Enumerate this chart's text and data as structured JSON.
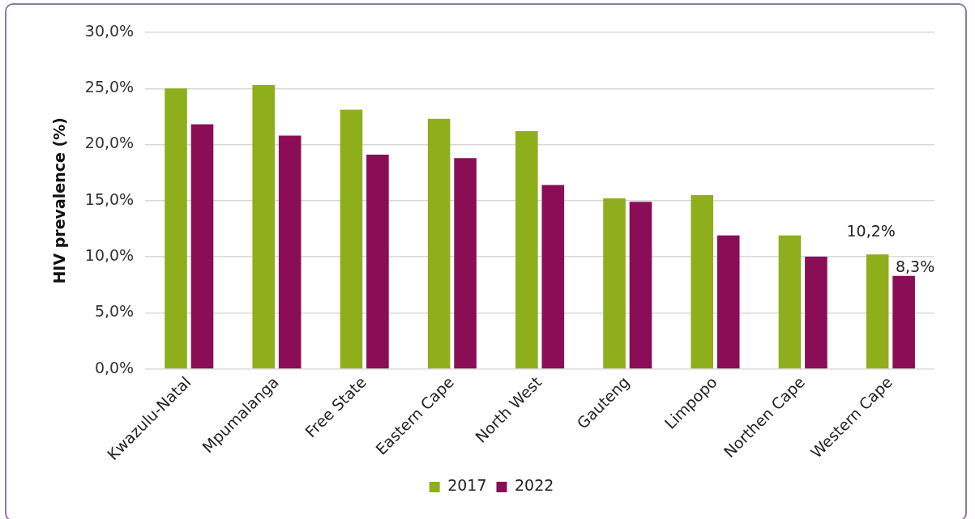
{
  "chart_data": {
    "type": "bar",
    "ylabel": "HIV prevalence (%)",
    "categories": [
      "Kwazulu-Natal",
      "Mpumalanga",
      "Free State",
      "Eastern Cape",
      "North West",
      "Gauteng",
      "Limpopo",
      "Northen Cape",
      "Western Cape"
    ],
    "series": [
      {
        "name": "2017",
        "color": "#8fae1b",
        "values": [
          25.0,
          25.3,
          23.1,
          22.3,
          21.2,
          15.2,
          15.5,
          11.9,
          10.2
        ],
        "value_labels": [
          null,
          null,
          null,
          null,
          null,
          null,
          null,
          null,
          "10,2%"
        ]
      },
      {
        "name": "2022",
        "color": "#8b0d56",
        "values": [
          21.8,
          20.8,
          19.1,
          18.8,
          16.4,
          14.9,
          11.9,
          10.0,
          8.3
        ],
        "value_labels": [
          null,
          null,
          null,
          null,
          null,
          null,
          null,
          null,
          "8,3%"
        ]
      }
    ],
    "ylim": [
      0,
      30
    ],
    "yticks": [
      {
        "value": 0,
        "label": "0,0%"
      },
      {
        "value": 5,
        "label": "5,0%"
      },
      {
        "value": 10,
        "label": "10,0%"
      },
      {
        "value": 15,
        "label": "15,0%"
      },
      {
        "value": 20,
        "label": "20,0%"
      },
      {
        "value": 25,
        "label": "25,0%"
      },
      {
        "value": 30,
        "label": "30,0%"
      }
    ],
    "grid": "y",
    "legend": "bottom"
  }
}
